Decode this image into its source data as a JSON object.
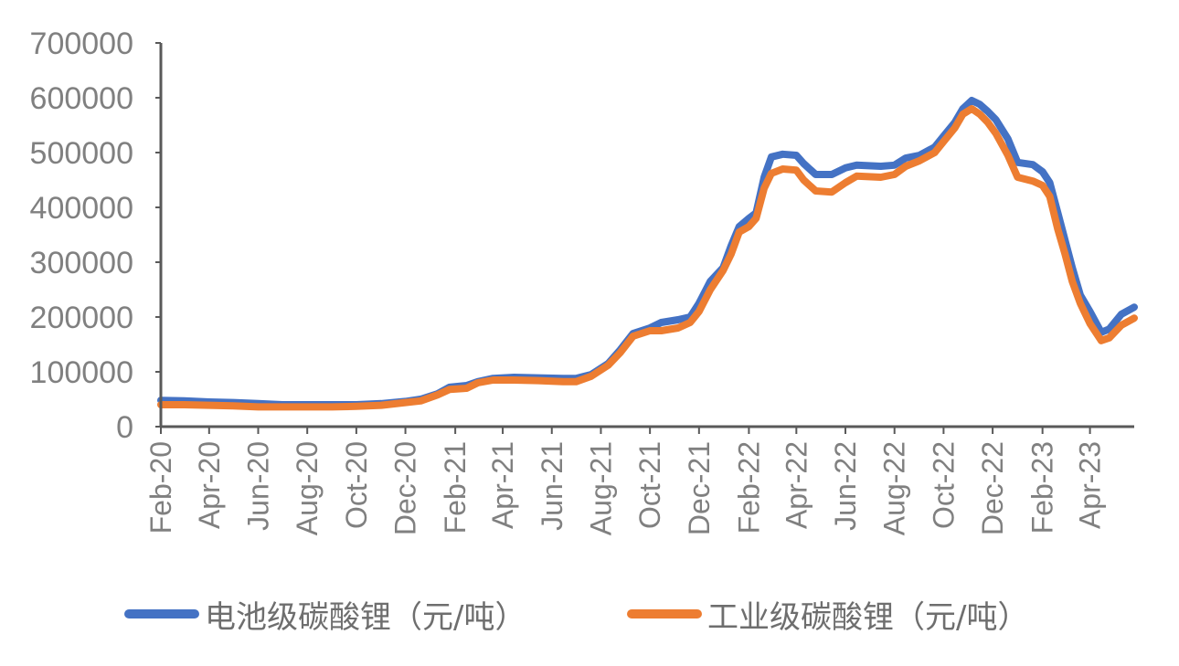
{
  "chart_data": {
    "type": "line",
    "title": "",
    "xlabel": "",
    "ylabel": "",
    "ylim": [
      0,
      700000
    ],
    "yticks": [
      "0",
      "100000",
      "200000",
      "300000",
      "400000",
      "500000",
      "600000",
      "700000"
    ],
    "xticks": [
      "Feb-20",
      "Apr-20",
      "Jun-20",
      "Aug-20",
      "Oct-20",
      "Dec-20",
      "Feb-21",
      "Apr-21",
      "Jun-21",
      "Aug-21",
      "Oct-21",
      "Dec-21",
      "Feb-22",
      "Apr-22",
      "Jun-22",
      "Aug-22",
      "Oct-22",
      "Dec-22",
      "Feb-23",
      "Apr-23"
    ],
    "x_start": "2020-02-01",
    "x_end": "2023-05-26",
    "grid": false,
    "legend_position": "bottom",
    "series": [
      {
        "name": "电池级碳酸锂（元/吨）",
        "color": "#4472c4",
        "points": [
          [
            "2020-02-01",
            48000
          ],
          [
            "2020-03-01",
            47000
          ],
          [
            "2020-04-01",
            45000
          ],
          [
            "2020-05-01",
            44000
          ],
          [
            "2020-06-01",
            42000
          ],
          [
            "2020-07-01",
            40000
          ],
          [
            "2020-08-01",
            40000
          ],
          [
            "2020-09-01",
            40000
          ],
          [
            "2020-10-01",
            40000
          ],
          [
            "2020-11-01",
            42000
          ],
          [
            "2020-12-01",
            46000
          ],
          [
            "2020-12-20",
            50000
          ],
          [
            "2021-01-10",
            60000
          ],
          [
            "2021-01-25",
            72000
          ],
          [
            "2021-02-15",
            75000
          ],
          [
            "2021-03-01",
            82000
          ],
          [
            "2021-03-20",
            88000
          ],
          [
            "2021-04-15",
            90000
          ],
          [
            "2021-05-15",
            89000
          ],
          [
            "2021-06-15",
            88000
          ],
          [
            "2021-07-01",
            88000
          ],
          [
            "2021-07-20",
            95000
          ],
          [
            "2021-08-10",
            115000
          ],
          [
            "2021-08-25",
            140000
          ],
          [
            "2021-09-10",
            170000
          ],
          [
            "2021-10-01",
            180000
          ],
          [
            "2021-10-15",
            190000
          ],
          [
            "2021-11-05",
            195000
          ],
          [
            "2021-11-20",
            200000
          ],
          [
            "2021-12-01",
            225000
          ],
          [
            "2021-12-15",
            265000
          ],
          [
            "2021-12-31",
            290000
          ],
          [
            "2022-01-10",
            330000
          ],
          [
            "2022-01-20",
            365000
          ],
          [
            "2022-02-01",
            380000
          ],
          [
            "2022-02-10",
            390000
          ],
          [
            "2022-02-20",
            455000
          ],
          [
            "2022-03-01",
            492000
          ],
          [
            "2022-03-15",
            497000
          ],
          [
            "2022-04-01",
            495000
          ],
          [
            "2022-04-10",
            480000
          ],
          [
            "2022-04-25",
            460000
          ],
          [
            "2022-05-15",
            460000
          ],
          [
            "2022-06-01",
            472000
          ],
          [
            "2022-06-15",
            477000
          ],
          [
            "2022-07-15",
            475000
          ],
          [
            "2022-08-01",
            477000
          ],
          [
            "2022-08-15",
            490000
          ],
          [
            "2022-09-01",
            495000
          ],
          [
            "2022-09-20",
            510000
          ],
          [
            "2022-10-01",
            530000
          ],
          [
            "2022-10-15",
            555000
          ],
          [
            "2022-10-25",
            580000
          ],
          [
            "2022-11-05",
            595000
          ],
          [
            "2022-11-15",
            588000
          ],
          [
            "2022-11-25",
            575000
          ],
          [
            "2022-12-05",
            560000
          ],
          [
            "2022-12-20",
            525000
          ],
          [
            "2023-01-01",
            482000
          ],
          [
            "2023-01-20",
            478000
          ],
          [
            "2023-02-01",
            465000
          ],
          [
            "2023-02-10",
            445000
          ],
          [
            "2023-02-20",
            390000
          ],
          [
            "2023-03-01",
            340000
          ],
          [
            "2023-03-10",
            290000
          ],
          [
            "2023-03-20",
            240000
          ],
          [
            "2023-04-01",
            210000
          ],
          [
            "2023-04-15",
            172000
          ],
          [
            "2023-04-25",
            178000
          ],
          [
            "2023-05-10",
            205000
          ],
          [
            "2023-05-26",
            218000
          ]
        ]
      },
      {
        "name": "工业级碳酸锂（元/吨）",
        "color": "#ed7d31",
        "points": [
          [
            "2020-02-01",
            40000
          ],
          [
            "2020-03-01",
            40000
          ],
          [
            "2020-04-01",
            39000
          ],
          [
            "2020-05-01",
            38000
          ],
          [
            "2020-06-01",
            36000
          ],
          [
            "2020-07-01",
            36000
          ],
          [
            "2020-08-01",
            36000
          ],
          [
            "2020-09-01",
            36000
          ],
          [
            "2020-10-01",
            37000
          ],
          [
            "2020-11-01",
            39000
          ],
          [
            "2020-12-01",
            44000
          ],
          [
            "2020-12-20",
            47000
          ],
          [
            "2021-01-10",
            58000
          ],
          [
            "2021-01-25",
            68000
          ],
          [
            "2021-02-15",
            70000
          ],
          [
            "2021-03-01",
            80000
          ],
          [
            "2021-03-20",
            85000
          ],
          [
            "2021-04-15",
            85000
          ],
          [
            "2021-05-15",
            84000
          ],
          [
            "2021-06-15",
            82000
          ],
          [
            "2021-07-01",
            82000
          ],
          [
            "2021-07-20",
            92000
          ],
          [
            "2021-08-10",
            112000
          ],
          [
            "2021-08-25",
            135000
          ],
          [
            "2021-09-10",
            165000
          ],
          [
            "2021-10-01",
            175000
          ],
          [
            "2021-10-15",
            175000
          ],
          [
            "2021-11-05",
            180000
          ],
          [
            "2021-11-20",
            190000
          ],
          [
            "2021-12-01",
            210000
          ],
          [
            "2021-12-15",
            250000
          ],
          [
            "2021-12-31",
            285000
          ],
          [
            "2022-01-10",
            315000
          ],
          [
            "2022-01-20",
            355000
          ],
          [
            "2022-02-01",
            365000
          ],
          [
            "2022-02-10",
            380000
          ],
          [
            "2022-02-20",
            435000
          ],
          [
            "2022-03-01",
            462000
          ],
          [
            "2022-03-15",
            470000
          ],
          [
            "2022-04-01",
            468000
          ],
          [
            "2022-04-10",
            450000
          ],
          [
            "2022-04-25",
            430000
          ],
          [
            "2022-05-15",
            428000
          ],
          [
            "2022-06-01",
            445000
          ],
          [
            "2022-06-15",
            457000
          ],
          [
            "2022-07-15",
            455000
          ],
          [
            "2022-08-01",
            460000
          ],
          [
            "2022-08-15",
            475000
          ],
          [
            "2022-09-01",
            485000
          ],
          [
            "2022-09-20",
            500000
          ],
          [
            "2022-10-01",
            520000
          ],
          [
            "2022-10-15",
            545000
          ],
          [
            "2022-10-25",
            570000
          ],
          [
            "2022-11-05",
            580000
          ],
          [
            "2022-11-15",
            570000
          ],
          [
            "2022-11-25",
            555000
          ],
          [
            "2022-12-05",
            535000
          ],
          [
            "2022-12-20",
            495000
          ],
          [
            "2023-01-01",
            455000
          ],
          [
            "2023-01-20",
            448000
          ],
          [
            "2023-02-01",
            440000
          ],
          [
            "2023-02-10",
            420000
          ],
          [
            "2023-02-20",
            360000
          ],
          [
            "2023-03-01",
            315000
          ],
          [
            "2023-03-10",
            265000
          ],
          [
            "2023-03-20",
            225000
          ],
          [
            "2023-04-01",
            188000
          ],
          [
            "2023-04-15",
            157000
          ],
          [
            "2023-04-25",
            162000
          ],
          [
            "2023-05-10",
            185000
          ],
          [
            "2023-05-26",
            198000
          ]
        ]
      }
    ]
  }
}
